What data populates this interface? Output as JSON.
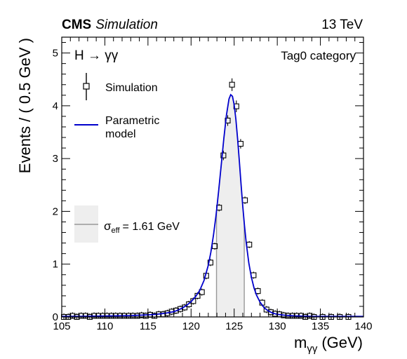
{
  "header": {
    "experiment": "CMS",
    "experiment_suffix": "Simulation",
    "energy": "13 TeV"
  },
  "chart_data": {
    "type": "scatter",
    "process_label": "H → γγ",
    "category_label": "Tag0 category",
    "xlabel": "m",
    "xlabel_sub": "γγ",
    "xlabel_unit": "(GeV)",
    "ylabel": "Events / ( 0.5 GeV )",
    "xlim": [
      105,
      140
    ],
    "ylim": [
      0,
      5.3
    ],
    "x_ticks": [
      "105",
      "110",
      "115",
      "120",
      "125",
      "130",
      "135",
      "140"
    ],
    "y_ticks": [
      "0",
      "1",
      "2",
      "3",
      "4",
      "5"
    ],
    "legend": {
      "simulation_label": "Simulation",
      "model_label_line1": "Parametric",
      "model_label_line2": "model",
      "sigma_symbol": "σ",
      "sigma_sub": "eff",
      "sigma_value": "= 1.61 GeV"
    },
    "sigma_eff_band": [
      122.95,
      126.17
    ],
    "colors": {
      "model": "#0000cc",
      "band_fill": "#eeeeee",
      "band_edge": "#999999"
    },
    "simulation_points": {
      "x": [
        105.25,
        105.75,
        106.25,
        106.75,
        107.25,
        107.75,
        108.25,
        108.75,
        109.25,
        109.75,
        110.25,
        110.75,
        111.25,
        111.75,
        112.25,
        112.75,
        113.25,
        113.75,
        114.25,
        114.75,
        115.25,
        115.75,
        116.25,
        116.75,
        117.25,
        117.75,
        118.25,
        118.75,
        119.25,
        119.75,
        120.25,
        120.75,
        121.25,
        121.75,
        122.25,
        122.75,
        123.25,
        123.75,
        124.25,
        124.75,
        125.25,
        125.75,
        126.25,
        126.75,
        127.25,
        127.75,
        128.25,
        128.75,
        129.25,
        129.75,
        130.25,
        130.75,
        131.25,
        131.75,
        132.25,
        132.75,
        133.25,
        133.75,
        134.25,
        135.25,
        136.25,
        137.25,
        138.25
      ],
      "y": [
        0.0,
        0.0,
        0.02,
        0.0,
        0.02,
        0.02,
        0.0,
        0.02,
        0.02,
        0.02,
        0.02,
        0.02,
        0.02,
        0.02,
        0.02,
        0.02,
        0.02,
        0.02,
        0.03,
        0.02,
        0.04,
        0.02,
        0.05,
        0.05,
        0.07,
        0.1,
        0.12,
        0.15,
        0.18,
        0.24,
        0.3,
        0.4,
        0.47,
        0.78,
        1.03,
        1.34,
        2.07,
        3.06,
        3.72,
        4.4,
        3.99,
        3.28,
        2.21,
        1.37,
        0.79,
        0.49,
        0.27,
        0.14,
        0.09,
        0.06,
        0.05,
        0.03,
        0.02,
        0.02,
        0.02,
        0.02,
        0.0,
        0.02,
        0.0,
        0.0,
        0.0,
        0.0,
        0.0
      ],
      "err": [
        0.0,
        0.0,
        0.01,
        0.0,
        0.01,
        0.01,
        0.0,
        0.01,
        0.01,
        0.01,
        0.01,
        0.01,
        0.01,
        0.01,
        0.01,
        0.01,
        0.01,
        0.01,
        0.01,
        0.01,
        0.01,
        0.01,
        0.01,
        0.01,
        0.02,
        0.02,
        0.02,
        0.02,
        0.03,
        0.03,
        0.03,
        0.04,
        0.04,
        0.05,
        0.05,
        0.06,
        0.07,
        0.09,
        0.1,
        0.12,
        0.11,
        0.09,
        0.07,
        0.06,
        0.05,
        0.04,
        0.03,
        0.02,
        0.02,
        0.01,
        0.01,
        0.01,
        0.01,
        0.01,
        0.01,
        0.01,
        0.0,
        0.01,
        0.0,
        0.0,
        0.0,
        0.0,
        0.0
      ]
    },
    "model_curve": {
      "x": [
        105,
        107,
        109,
        111,
        113,
        115,
        116,
        117,
        118,
        118.5,
        119,
        119.5,
        120,
        120.5,
        121,
        121.5,
        122,
        122.3,
        122.6,
        122.9,
        123.2,
        123.5,
        123.8,
        124.1,
        124.4,
        124.6,
        124.8,
        125.0,
        125.2,
        125.4,
        125.6,
        125.8,
        126.0,
        126.2,
        126.4,
        126.7,
        127.0,
        127.3,
        127.6,
        128.0,
        128.5,
        129,
        129.5,
        130,
        131,
        132,
        134,
        136,
        138,
        140
      ],
      "y": [
        0.01,
        0.01,
        0.015,
        0.02,
        0.025,
        0.04,
        0.05,
        0.07,
        0.1,
        0.13,
        0.17,
        0.22,
        0.29,
        0.38,
        0.5,
        0.69,
        0.98,
        1.23,
        1.55,
        1.93,
        2.39,
        2.88,
        3.38,
        3.82,
        4.13,
        4.21,
        4.18,
        4.02,
        3.74,
        3.37,
        2.95,
        2.51,
        2.09,
        1.72,
        1.4,
        1.02,
        0.75,
        0.55,
        0.41,
        0.28,
        0.17,
        0.11,
        0.07,
        0.05,
        0.03,
        0.02,
        0.01,
        0.01,
        0.01,
        0.01
      ]
    }
  }
}
